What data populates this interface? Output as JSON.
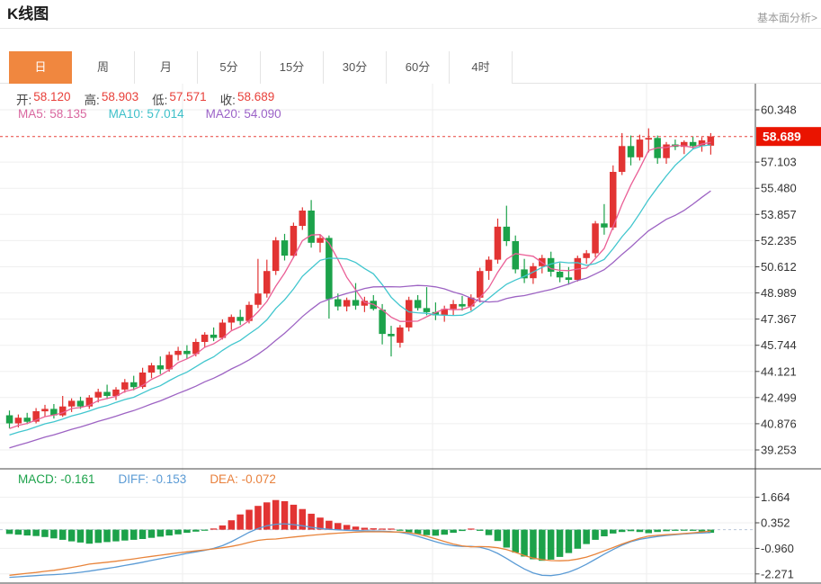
{
  "header": {
    "title": "K线图",
    "link": "基本面分析>"
  },
  "tabs": {
    "items": [
      "日",
      "周",
      "月",
      "5分",
      "15分",
      "30分",
      "60分",
      "4时"
    ],
    "active_index": 0
  },
  "ohlc": {
    "open_label": "开:",
    "open": "58.120",
    "high_label": "高:",
    "high": "58.903",
    "low_label": "低:",
    "low": "57.571",
    "close_label": "收:",
    "close": "58.689"
  },
  "ma_legend": {
    "ma5": "MA5: 58.135",
    "ma10": "MA10: 57.014",
    "ma20": "MA20: 54.090"
  },
  "macd_legend": {
    "macd": "MACD: -0.161",
    "diff": "DIFF: -0.153",
    "dea": "DEA: -0.072"
  },
  "colors": {
    "tab_active": "#f0873f",
    "up_red": "#e23433",
    "down_green": "#1ca24a",
    "ma5_pink": "#ea5f96",
    "ma10_cyan": "#41c6ce",
    "ma20_purple": "#9d63c3",
    "diff_blue": "#5b9bd5",
    "dea_orange": "#e8843b",
    "price_tag_red": "#ea1400",
    "price_line_red": "#e8433c",
    "macd_zero_line": "#b9c6d8",
    "grid": "#efefef",
    "axis": "#444444"
  },
  "chart_data": {
    "type": "candlestick",
    "title": "K线图",
    "period": "日",
    "legend": [
      "MA5",
      "MA10",
      "MA20"
    ],
    "ma_periods": [
      5,
      10,
      20
    ],
    "price_axis_ticks": [
      "60.348",
      "57.103",
      "55.480",
      "53.857",
      "52.235",
      "50.612",
      "48.989",
      "47.367",
      "45.744",
      "44.121",
      "42.499",
      "40.876",
      "39.253"
    ],
    "last_price": "58.689",
    "last_ohlc": {
      "open": 58.12,
      "high": 58.903,
      "low": 57.571,
      "close": 58.689
    },
    "candles_ohlc": [
      [
        41.4,
        41.7,
        40.6,
        40.9
      ],
      [
        40.9,
        41.45,
        40.65,
        41.25
      ],
      [
        41.25,
        41.55,
        40.85,
        41.0
      ],
      [
        41.0,
        41.85,
        40.9,
        41.65
      ],
      [
        41.65,
        42.05,
        41.3,
        41.8
      ],
      [
        41.8,
        42.1,
        41.2,
        41.4
      ],
      [
        41.4,
        42.6,
        41.3,
        41.95
      ],
      [
        41.95,
        42.45,
        41.6,
        42.3
      ],
      [
        42.3,
        42.55,
        41.8,
        41.95
      ],
      [
        41.95,
        42.65,
        41.8,
        42.5
      ],
      [
        42.5,
        43.05,
        42.2,
        42.85
      ],
      [
        42.85,
        43.3,
        42.4,
        42.6
      ],
      [
        42.6,
        43.15,
        42.35,
        43.0
      ],
      [
        43.0,
        43.65,
        42.8,
        43.45
      ],
      [
        43.45,
        43.85,
        42.95,
        43.15
      ],
      [
        43.15,
        44.35,
        43.05,
        44.05
      ],
      [
        44.05,
        44.65,
        43.7,
        44.5
      ],
      [
        44.5,
        45.05,
        43.95,
        44.25
      ],
      [
        44.25,
        45.35,
        44.1,
        45.15
      ],
      [
        45.15,
        45.65,
        44.8,
        45.4
      ],
      [
        45.4,
        45.75,
        44.9,
        45.2
      ],
      [
        45.2,
        46.15,
        45.05,
        45.95
      ],
      [
        45.95,
        46.55,
        45.6,
        46.4
      ],
      [
        46.4,
        46.85,
        46.0,
        46.2
      ],
      [
        46.2,
        47.35,
        46.1,
        47.15
      ],
      [
        47.15,
        47.65,
        46.7,
        47.5
      ],
      [
        47.5,
        47.95,
        47.0,
        47.25
      ],
      [
        47.25,
        48.45,
        47.1,
        48.25
      ],
      [
        48.25,
        51.1,
        48.05,
        48.95
      ],
      [
        48.95,
        51.05,
        48.7,
        50.35
      ],
      [
        50.35,
        52.45,
        50.1,
        52.25
      ],
      [
        52.25,
        52.65,
        51.0,
        51.3
      ],
      [
        51.3,
        53.35,
        51.15,
        53.15
      ],
      [
        53.15,
        54.3,
        52.9,
        54.1
      ],
      [
        54.1,
        54.75,
        51.8,
        52.1
      ],
      [
        52.1,
        52.6,
        51.5,
        52.4
      ],
      [
        52.4,
        52.55,
        47.4,
        48.6
      ],
      [
        48.6,
        48.95,
        47.9,
        48.15
      ],
      [
        48.15,
        48.7,
        47.85,
        48.55
      ],
      [
        48.55,
        49.6,
        47.95,
        48.2
      ],
      [
        48.2,
        48.75,
        47.8,
        48.5
      ],
      [
        48.5,
        48.85,
        47.9,
        48.0
      ],
      [
        47.95,
        48.3,
        45.8,
        46.45
      ],
      [
        46.45,
        46.95,
        45.05,
        46.3
      ],
      [
        45.9,
        47.0,
        45.6,
        46.85
      ],
      [
        46.85,
        48.75,
        46.6,
        48.55
      ],
      [
        48.55,
        48.85,
        47.9,
        48.05
      ],
      [
        48.05,
        49.35,
        47.6,
        47.8
      ],
      [
        47.8,
        48.4,
        47.3,
        47.6
      ],
      [
        47.6,
        48.2,
        47.2,
        48.0
      ],
      [
        48.0,
        48.55,
        47.6,
        48.3
      ],
      [
        48.3,
        48.8,
        47.9,
        48.15
      ],
      [
        48.15,
        48.9,
        47.9,
        48.7
      ],
      [
        48.7,
        50.55,
        48.4,
        50.35
      ],
      [
        50.35,
        51.25,
        49.8,
        51.05
      ],
      [
        51.05,
        53.6,
        50.8,
        53.1
      ],
      [
        53.1,
        54.4,
        51.9,
        52.2
      ],
      [
        52.2,
        52.55,
        50.2,
        50.45
      ],
      [
        50.45,
        51.1,
        49.6,
        49.9
      ],
      [
        49.9,
        50.85,
        49.55,
        50.65
      ],
      [
        50.65,
        51.35,
        50.2,
        51.15
      ],
      [
        51.15,
        51.55,
        50.0,
        50.3
      ],
      [
        50.3,
        50.85,
        49.65,
        49.95
      ],
      [
        49.95,
        50.6,
        49.5,
        49.8
      ],
      [
        49.8,
        51.3,
        49.7,
        51.15
      ],
      [
        51.15,
        51.65,
        50.8,
        51.45
      ],
      [
        51.45,
        53.45,
        51.2,
        53.3
      ],
      [
        53.3,
        54.5,
        52.6,
        53.05
      ],
      [
        53.05,
        56.9,
        52.9,
        56.5
      ],
      [
        56.5,
        58.9,
        56.3,
        58.1
      ],
      [
        58.1,
        58.75,
        56.9,
        57.4
      ],
      [
        57.4,
        58.8,
        57.2,
        58.5
      ],
      [
        58.5,
        59.2,
        57.7,
        58.6
      ],
      [
        58.6,
        58.75,
        57.0,
        57.35
      ],
      [
        57.35,
        58.35,
        57.0,
        58.2
      ],
      [
        58.2,
        58.5,
        57.85,
        58.05
      ],
      [
        58.05,
        58.45,
        57.6,
        58.35
      ],
      [
        58.35,
        58.7,
        57.9,
        58.1
      ],
      [
        58.1,
        58.65,
        57.75,
        58.45
      ],
      [
        58.12,
        58.903,
        57.571,
        58.689
      ]
    ],
    "macd_panel": {
      "type": "macd",
      "axis_ticks": [
        "1.664",
        "0.352",
        "-0.960",
        "-2.271"
      ],
      "values": {
        "macd": -0.161,
        "diff": -0.153,
        "dea": -0.072
      },
      "histogram": [
        -0.22,
        -0.26,
        -0.3,
        -0.33,
        -0.38,
        -0.45,
        -0.52,
        -0.6,
        -0.66,
        -0.72,
        -0.68,
        -0.64,
        -0.6,
        -0.56,
        -0.52,
        -0.48,
        -0.42,
        -0.36,
        -0.3,
        -0.24,
        -0.16,
        -0.1,
        -0.05,
        0.06,
        0.22,
        0.48,
        0.78,
        1.02,
        1.22,
        1.4,
        1.52,
        1.46,
        1.28,
        1.06,
        0.82,
        0.62,
        0.46,
        0.34,
        0.24,
        0.16,
        0.1,
        0.07,
        0.05,
        0.03,
        -0.05,
        -0.14,
        -0.22,
        -0.28,
        -0.31,
        -0.26,
        -0.16,
        -0.07,
        0.04,
        -0.06,
        -0.28,
        -0.58,
        -0.92,
        -1.18,
        -1.38,
        -1.52,
        -1.6,
        -1.54,
        -1.4,
        -1.2,
        -0.98,
        -0.74,
        -0.52,
        -0.34,
        -0.2,
        -0.12,
        -0.08,
        -0.12,
        -0.18,
        -0.12,
        -0.08,
        -0.06,
        -0.05,
        -0.06,
        -0.1,
        -0.161
      ],
      "diff": [
        -2.45,
        -2.42,
        -2.39,
        -2.36,
        -2.33,
        -2.31,
        -2.28,
        -2.24,
        -2.19,
        -2.13,
        -2.06,
        -1.99,
        -1.92,
        -1.84,
        -1.76,
        -1.67,
        -1.58,
        -1.49,
        -1.4,
        -1.31,
        -1.22,
        -1.14,
        -1.06,
        -0.96,
        -0.82,
        -0.62,
        -0.38,
        -0.14,
        0.06,
        0.2,
        0.28,
        0.3,
        0.26,
        0.2,
        0.12,
        0.06,
        0.02,
        -0.01,
        -0.03,
        -0.05,
        -0.06,
        -0.07,
        -0.08,
        -0.1,
        -0.14,
        -0.22,
        -0.34,
        -0.48,
        -0.62,
        -0.74,
        -0.82,
        -0.86,
        -0.86,
        -0.9,
        -1.02,
        -1.22,
        -1.48,
        -1.76,
        -2.02,
        -2.22,
        -2.34,
        -2.36,
        -2.3,
        -2.18,
        -2.0,
        -1.78,
        -1.52,
        -1.26,
        -1.02,
        -0.8,
        -0.62,
        -0.5,
        -0.42,
        -0.35,
        -0.3,
        -0.26,
        -0.22,
        -0.19,
        -0.17,
        -0.153
      ],
      "dea": [
        -2.34,
        -2.29,
        -2.24,
        -2.2,
        -2.14,
        -2.09,
        -2.02,
        -1.94,
        -1.86,
        -1.77,
        -1.72,
        -1.67,
        -1.62,
        -1.56,
        -1.5,
        -1.43,
        -1.37,
        -1.31,
        -1.25,
        -1.19,
        -1.14,
        -1.09,
        -1.04,
        -0.99,
        -0.93,
        -0.86,
        -0.77,
        -0.65,
        -0.55,
        -0.5,
        -0.48,
        -0.43,
        -0.38,
        -0.33,
        -0.29,
        -0.25,
        -0.21,
        -0.18,
        -0.15,
        -0.13,
        -0.11,
        -0.11,
        -0.11,
        -0.12,
        -0.12,
        -0.15,
        -0.23,
        -0.34,
        -0.47,
        -0.61,
        -0.74,
        -0.83,
        -0.88,
        -0.87,
        -0.88,
        -0.93,
        -1.02,
        -1.17,
        -1.33,
        -1.46,
        -1.54,
        -1.59,
        -1.6,
        -1.58,
        -1.51,
        -1.41,
        -1.26,
        -1.09,
        -0.92,
        -0.74,
        -0.58,
        -0.44,
        -0.33,
        -0.29,
        -0.26,
        -0.23,
        -0.2,
        -0.16,
        -0.12,
        -0.072
      ]
    }
  }
}
